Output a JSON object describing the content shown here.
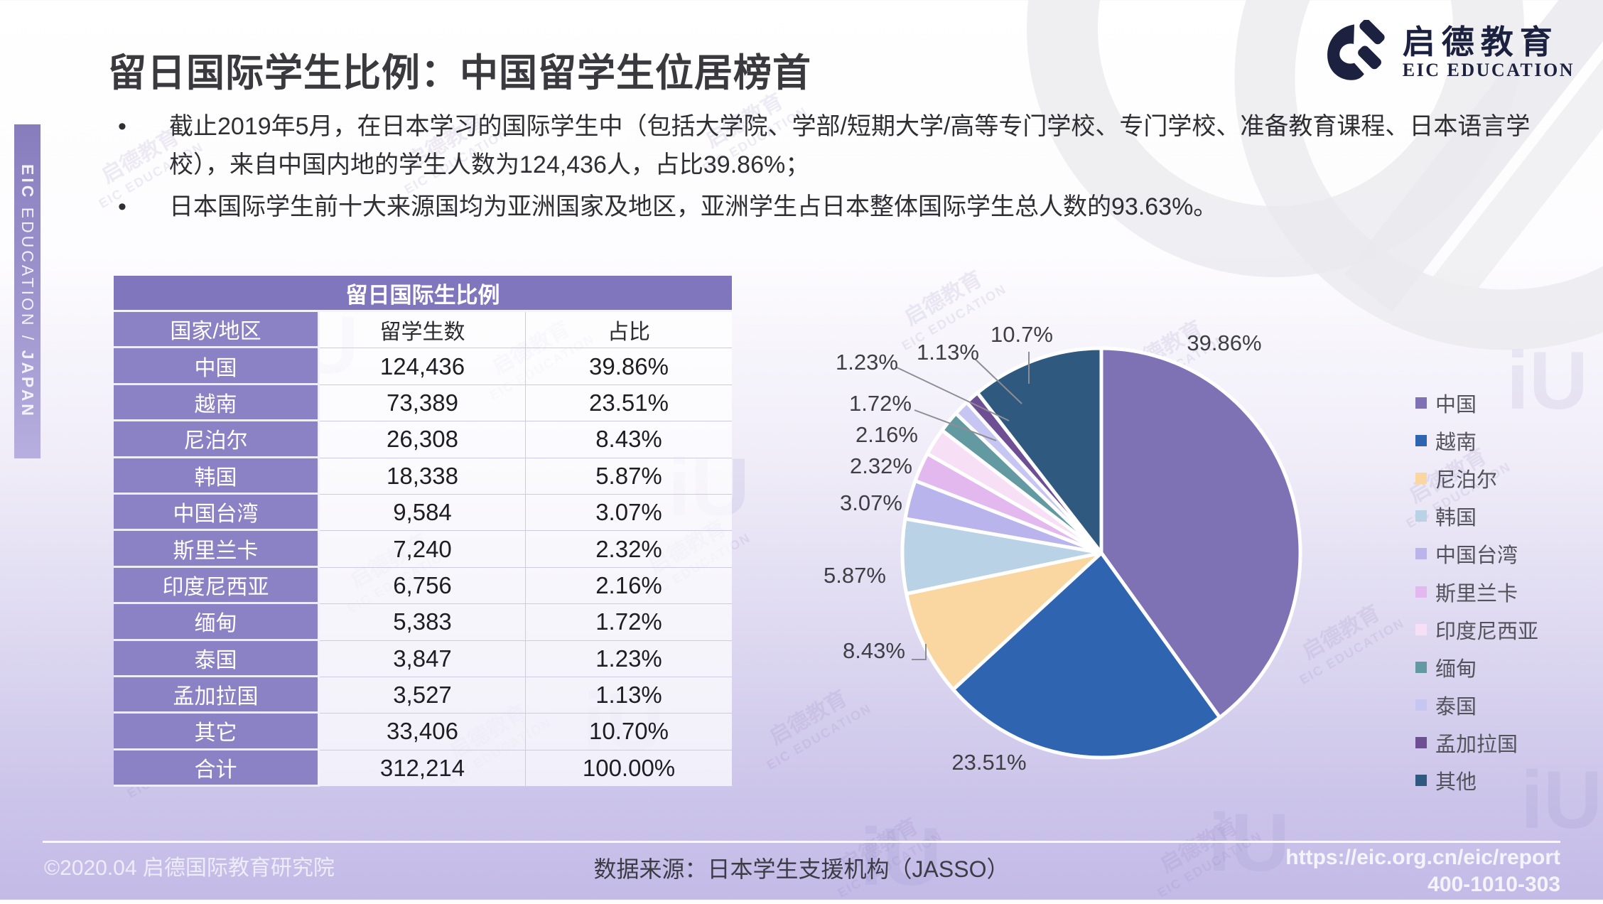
{
  "slide": {
    "title": "留日国际学生比例：中国留学生位居榜首",
    "bullets": [
      "截止2019年5月，在日本学习的国际学生中（包括大学院、学部/短期大学/高等专门学校、专门学校、准备教育课程、日本语言学校），来自中国内地的学生人数为124,436人，占比39.86%；",
      "日本国际学生前十大来源国均为亚洲国家及地区，亚洲学生占日本整体国际学生总人数的93.63%。"
    ]
  },
  "logo": {
    "cn": "启德教育",
    "en": "EIC EDUCATION"
  },
  "sidebar": {
    "bold1": "EIC",
    "mid": " EDUCATION / ",
    "bold2": "JAPAN"
  },
  "table": {
    "title": "留日国际生比例",
    "headers": [
      "国家/地区",
      "留学生数",
      "占比"
    ],
    "rows": [
      [
        "中国",
        "124,436",
        "39.86%"
      ],
      [
        "越南",
        "73,389",
        "23.51%"
      ],
      [
        "尼泊尔",
        "26,308",
        "8.43%"
      ],
      [
        "韩国",
        "18,338",
        "5.87%"
      ],
      [
        "中国台湾",
        "9,584",
        "3.07%"
      ],
      [
        "斯里兰卡",
        "7,240",
        "2.32%"
      ],
      [
        "印度尼西亚",
        "6,756",
        "2.16%"
      ],
      [
        "缅甸",
        "5,383",
        "1.72%"
      ],
      [
        "泰国",
        "3,847",
        "1.23%"
      ],
      [
        "孟加拉国",
        "3,527",
        "1.13%"
      ],
      [
        "其它",
        "33,406",
        "10.70%"
      ],
      [
        "合计",
        "312,214",
        "100.00%"
      ]
    ]
  },
  "chart_data": {
    "type": "pie",
    "title": "",
    "start_angle_deg": 0,
    "direction": "clockwise",
    "legend_position": "right",
    "slices": [
      {
        "label": "中国",
        "value": 39.86,
        "display": "39.86%",
        "color": "#7e72b5"
      },
      {
        "label": "越南",
        "value": 23.51,
        "display": "23.51%",
        "color": "#2f64b0"
      },
      {
        "label": "尼泊尔",
        "value": 8.43,
        "display": "8.43%",
        "color": "#fad6a0"
      },
      {
        "label": "韩国",
        "value": 5.87,
        "display": "5.87%",
        "color": "#b9d2e6"
      },
      {
        "label": "中国台湾",
        "value": 3.07,
        "display": "3.07%",
        "color": "#b9b5ec"
      },
      {
        "label": "斯里兰卡",
        "value": 2.32,
        "display": "2.32%",
        "color": "#e3b8ef"
      },
      {
        "label": "印度尼西亚",
        "value": 2.16,
        "display": "2.16%",
        "color": "#f7e0f6"
      },
      {
        "label": "缅甸",
        "value": 1.72,
        "display": "1.72%",
        "color": "#639aa2"
      },
      {
        "label": "泰国",
        "value": 1.23,
        "display": "1.23%",
        "color": "#c7c5f1"
      },
      {
        "label": "孟加拉国",
        "value": 1.13,
        "display": "1.13%",
        "color": "#6f4f93"
      },
      {
        "label": "其他",
        "value": 10.7,
        "display": "10.7%",
        "color": "#30597f"
      }
    ]
  },
  "footer": {
    "copyright": "©2020.04 启德国际教育研究院",
    "source": "数据来源：日本学生支援机构（JASSO）",
    "url": "https://eic.org.cn/eic/report",
    "phone": "400-1010-303"
  },
  "watermark": {
    "cn": "启德教育",
    "en": "EIC EDUCATION",
    "mark": "iU"
  }
}
